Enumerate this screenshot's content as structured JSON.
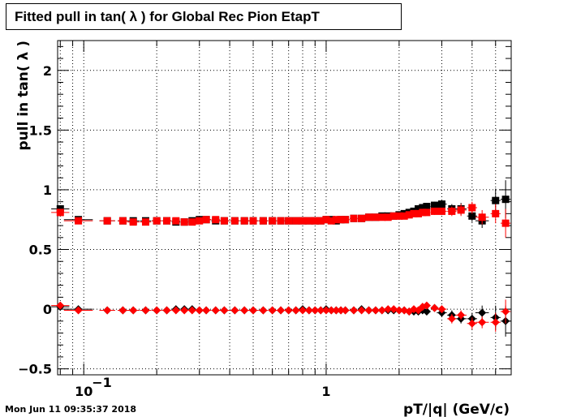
{
  "chart_data": {
    "type": "scatter",
    "title": "Fitted pull in tan( λ ) for Global Rec Pion EtapT",
    "xlabel": "pT/|q| (GeV/c)",
    "ylabel": "pull in tan( λ )",
    "x_scale": "log",
    "xlim": [
      0.078,
      5.8
    ],
    "ylim": [
      -0.55,
      2.25
    ],
    "grid": true,
    "y_ticks": [
      {
        "value": -0.5,
        "label": "−0.5"
      },
      {
        "value": 0,
        "label": "0"
      },
      {
        "value": 0.5,
        "label": "0.5"
      },
      {
        "value": 1,
        "label": "1"
      },
      {
        "value": 1.5,
        "label": "1.5"
      },
      {
        "value": 2,
        "label": "2"
      }
    ],
    "x_ticks": [
      {
        "value": 0.1,
        "label": "10",
        "exp": "−1"
      },
      {
        "value": 1,
        "label": "1"
      }
    ],
    "series": [
      {
        "color": "#000000",
        "marker": "square",
        "x": [
          0.08,
          0.095,
          0.125,
          0.145,
          0.16,
          0.18,
          0.2,
          0.22,
          0.24,
          0.26,
          0.28,
          0.3,
          0.32,
          0.35,
          0.38,
          0.42,
          0.46,
          0.5,
          0.55,
          0.6,
          0.65,
          0.7,
          0.75,
          0.8,
          0.85,
          0.9,
          0.95,
          1.0,
          1.05,
          1.1,
          1.15,
          1.2,
          1.3,
          1.4,
          1.5,
          1.6,
          1.7,
          1.8,
          1.9,
          2.0,
          2.1,
          2.2,
          2.3,
          2.4,
          2.5,
          2.6,
          2.8,
          3.0,
          3.3,
          3.6,
          4.0,
          4.4,
          5.0,
          5.5
        ],
        "y": [
          0.84,
          0.75,
          0.74,
          0.74,
          0.74,
          0.74,
          0.74,
          0.74,
          0.73,
          0.73,
          0.74,
          0.75,
          0.75,
          0.74,
          0.74,
          0.74,
          0.74,
          0.74,
          0.74,
          0.74,
          0.74,
          0.74,
          0.74,
          0.74,
          0.74,
          0.74,
          0.74,
          0.75,
          0.75,
          0.74,
          0.75,
          0.75,
          0.76,
          0.76,
          0.77,
          0.77,
          0.78,
          0.78,
          0.78,
          0.79,
          0.8,
          0.81,
          0.82,
          0.84,
          0.85,
          0.86,
          0.87,
          0.88,
          0.84,
          0.84,
          0.78,
          0.74,
          0.91,
          0.92
        ],
        "yerr": [
          0.02,
          0.01,
          0.01,
          0.01,
          0.01,
          0.01,
          0.01,
          0.01,
          0.01,
          0.01,
          0.01,
          0.01,
          0.01,
          0.01,
          0.01,
          0.01,
          0.01,
          0.01,
          0.01,
          0.01,
          0.01,
          0.01,
          0.01,
          0.01,
          0.01,
          0.01,
          0.01,
          0.01,
          0.01,
          0.01,
          0.01,
          0.01,
          0.01,
          0.01,
          0.01,
          0.01,
          0.01,
          0.01,
          0.01,
          0.01,
          0.01,
          0.01,
          0.02,
          0.02,
          0.02,
          0.02,
          0.03,
          0.03,
          0.04,
          0.05,
          0.05,
          0.06,
          0.1,
          0.16
        ]
      },
      {
        "color": "#000000",
        "marker": "diamond",
        "x": [
          0.08,
          0.095,
          0.125,
          0.145,
          0.16,
          0.18,
          0.2,
          0.22,
          0.24,
          0.26,
          0.28,
          0.3,
          0.32,
          0.35,
          0.38,
          0.42,
          0.46,
          0.5,
          0.55,
          0.6,
          0.65,
          0.7,
          0.75,
          0.8,
          0.85,
          0.9,
          0.95,
          1.0,
          1.05,
          1.1,
          1.15,
          1.2,
          1.3,
          1.4,
          1.5,
          1.6,
          1.7,
          1.8,
          1.9,
          2.0,
          2.1,
          2.2,
          2.3,
          2.4,
          2.5,
          2.6,
          2.8,
          3.0,
          3.3,
          3.6,
          4.0,
          4.4,
          5.0,
          5.5
        ],
        "y": [
          0.02,
          0.0,
          -0.01,
          -0.01,
          -0.01,
          -0.01,
          -0.01,
          -0.01,
          0.0,
          0.0,
          0.0,
          -0.01,
          -0.01,
          -0.01,
          -0.01,
          -0.01,
          -0.01,
          -0.01,
          -0.01,
          -0.01,
          -0.01,
          -0.01,
          -0.01,
          0.0,
          -0.01,
          -0.01,
          -0.01,
          0.0,
          -0.01,
          -0.01,
          -0.01,
          -0.01,
          -0.01,
          0.0,
          -0.01,
          -0.01,
          -0.01,
          -0.01,
          -0.01,
          -0.01,
          -0.01,
          -0.02,
          -0.02,
          -0.02,
          -0.01,
          -0.02,
          0.01,
          -0.03,
          -0.05,
          -0.08,
          -0.08,
          -0.03,
          -0.07,
          -0.1
        ],
        "yerr": [
          0.02,
          0.01,
          0.01,
          0.01,
          0.01,
          0.01,
          0.01,
          0.01,
          0.01,
          0.01,
          0.01,
          0.01,
          0.01,
          0.01,
          0.01,
          0.01,
          0.01,
          0.01,
          0.01,
          0.01,
          0.01,
          0.01,
          0.01,
          0.01,
          0.01,
          0.01,
          0.01,
          0.01,
          0.01,
          0.01,
          0.01,
          0.01,
          0.01,
          0.01,
          0.01,
          0.01,
          0.01,
          0.01,
          0.01,
          0.01,
          0.01,
          0.01,
          0.02,
          0.02,
          0.02,
          0.02,
          0.03,
          0.03,
          0.04,
          0.04,
          0.05,
          0.06,
          0.1,
          0.13
        ]
      },
      {
        "color": "#ff0000",
        "marker": "square",
        "x": [
          0.08,
          0.095,
          0.125,
          0.145,
          0.16,
          0.18,
          0.2,
          0.22,
          0.24,
          0.26,
          0.28,
          0.3,
          0.32,
          0.35,
          0.38,
          0.42,
          0.46,
          0.5,
          0.55,
          0.6,
          0.65,
          0.7,
          0.75,
          0.8,
          0.85,
          0.9,
          0.95,
          1.0,
          1.05,
          1.1,
          1.15,
          1.2,
          1.3,
          1.4,
          1.5,
          1.6,
          1.7,
          1.8,
          1.9,
          2.0,
          2.1,
          2.2,
          2.3,
          2.4,
          2.5,
          2.6,
          2.8,
          3.0,
          3.3,
          3.6,
          4.0,
          4.4,
          5.0,
          5.5
        ],
        "y": [
          0.81,
          0.74,
          0.74,
          0.74,
          0.73,
          0.73,
          0.74,
          0.74,
          0.74,
          0.73,
          0.73,
          0.74,
          0.75,
          0.75,
          0.74,
          0.74,
          0.74,
          0.74,
          0.74,
          0.74,
          0.74,
          0.74,
          0.74,
          0.74,
          0.74,
          0.74,
          0.74,
          0.75,
          0.74,
          0.75,
          0.75,
          0.75,
          0.76,
          0.76,
          0.77,
          0.77,
          0.77,
          0.77,
          0.78,
          0.78,
          0.78,
          0.79,
          0.8,
          0.8,
          0.81,
          0.81,
          0.82,
          0.82,
          0.82,
          0.83,
          0.85,
          0.77,
          0.8,
          0.72
        ],
        "yerr": [
          0.02,
          0.01,
          0.01,
          0.01,
          0.01,
          0.01,
          0.01,
          0.01,
          0.01,
          0.01,
          0.01,
          0.01,
          0.01,
          0.01,
          0.01,
          0.01,
          0.01,
          0.01,
          0.01,
          0.01,
          0.01,
          0.01,
          0.01,
          0.01,
          0.01,
          0.01,
          0.01,
          0.01,
          0.01,
          0.01,
          0.01,
          0.01,
          0.01,
          0.01,
          0.01,
          0.01,
          0.01,
          0.01,
          0.01,
          0.01,
          0.01,
          0.01,
          0.02,
          0.02,
          0.02,
          0.02,
          0.03,
          0.03,
          0.04,
          0.05,
          0.05,
          0.06,
          0.08,
          0.12
        ]
      },
      {
        "color": "#ff0000",
        "marker": "diamond",
        "x": [
          0.08,
          0.095,
          0.125,
          0.145,
          0.16,
          0.18,
          0.2,
          0.22,
          0.24,
          0.26,
          0.28,
          0.3,
          0.32,
          0.35,
          0.38,
          0.42,
          0.46,
          0.5,
          0.55,
          0.6,
          0.65,
          0.7,
          0.75,
          0.8,
          0.85,
          0.9,
          0.95,
          1.0,
          1.05,
          1.1,
          1.15,
          1.2,
          1.3,
          1.4,
          1.5,
          1.6,
          1.7,
          1.8,
          1.9,
          2.0,
          2.1,
          2.2,
          2.3,
          2.4,
          2.5,
          2.6,
          2.8,
          3.0,
          3.3,
          3.6,
          4.0,
          4.4,
          5.0,
          5.5
        ],
        "y": [
          0.03,
          -0.01,
          -0.01,
          -0.01,
          -0.01,
          -0.01,
          -0.01,
          -0.01,
          -0.01,
          -0.01,
          -0.01,
          -0.01,
          -0.01,
          -0.01,
          -0.01,
          -0.01,
          -0.01,
          -0.01,
          -0.01,
          -0.01,
          -0.01,
          -0.01,
          -0.01,
          -0.01,
          -0.01,
          -0.01,
          -0.01,
          -0.01,
          -0.01,
          -0.01,
          -0.01,
          -0.01,
          -0.01,
          -0.01,
          -0.01,
          -0.01,
          -0.01,
          0.0,
          0.0,
          -0.01,
          -0.01,
          -0.02,
          0.0,
          -0.01,
          0.02,
          0.03,
          0.01,
          0.0,
          -0.08,
          -0.05,
          -0.12,
          -0.11,
          -0.11,
          -0.02
        ],
        "yerr": [
          0.02,
          0.01,
          0.01,
          0.01,
          0.01,
          0.01,
          0.01,
          0.01,
          0.01,
          0.01,
          0.01,
          0.01,
          0.01,
          0.01,
          0.01,
          0.01,
          0.01,
          0.01,
          0.01,
          0.01,
          0.01,
          0.01,
          0.01,
          0.01,
          0.01,
          0.01,
          0.01,
          0.01,
          0.01,
          0.01,
          0.01,
          0.01,
          0.01,
          0.01,
          0.01,
          0.01,
          0.01,
          0.01,
          0.01,
          0.01,
          0.01,
          0.01,
          0.02,
          0.02,
          0.02,
          0.02,
          0.03,
          0.03,
          0.04,
          0.04,
          0.05,
          0.05,
          0.08,
          0.1
        ]
      }
    ]
  },
  "footer": {
    "timestamp": "Mon Jun 11 09:35:37 2018"
  }
}
